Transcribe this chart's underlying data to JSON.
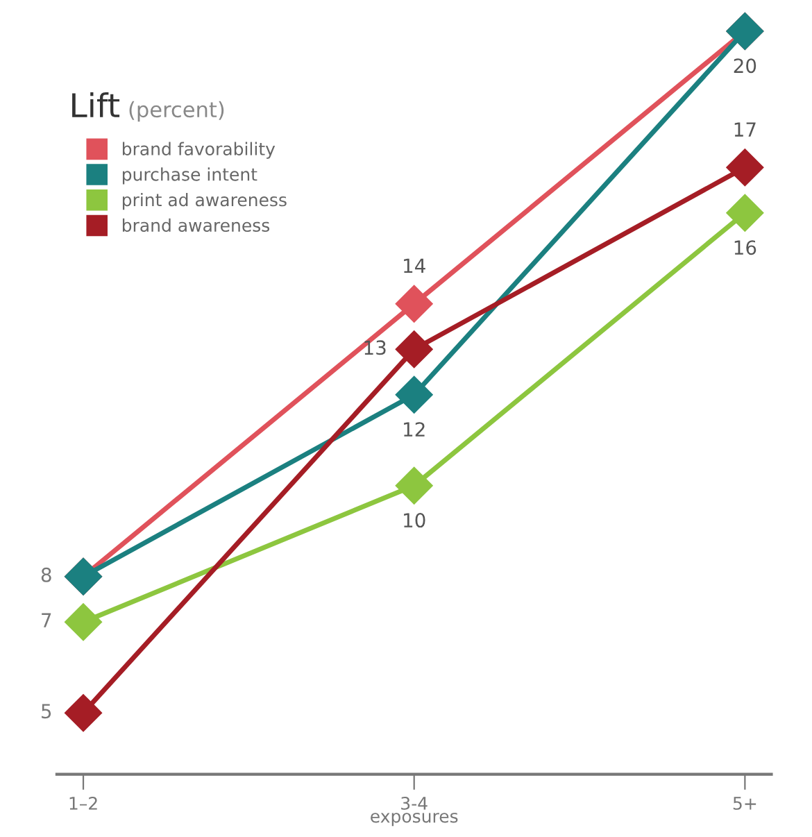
{
  "chart_data": {
    "type": "line",
    "title": "Lift",
    "subtitle": "(percent)",
    "xlabel": "exposures",
    "categories": [
      "1–2",
      "3-4",
      "5+"
    ],
    "series": [
      {
        "name": "brand favorability",
        "color": "#e0525b",
        "values": [
          8,
          14,
          20
        ],
        "value_labels": [
          "8",
          "14",
          "20"
        ]
      },
      {
        "name": "purchase intent",
        "color": "#1b8080",
        "values": [
          8,
          12,
          20
        ],
        "value_labels": [
          null,
          "12",
          null
        ]
      },
      {
        "name": "print ad awareness",
        "color": "#8dc63f",
        "values": [
          7,
          10,
          16
        ],
        "value_labels": [
          "7",
          "10",
          "16"
        ]
      },
      {
        "name": "brand awareness",
        "color": "#a51d25",
        "values": [
          5,
          13,
          17
        ],
        "value_labels": [
          "5",
          "13",
          "17"
        ]
      }
    ],
    "marker": "diamond",
    "line_style": "solid",
    "legend": "top left",
    "grid": false,
    "tick_labels": "x"
  }
}
